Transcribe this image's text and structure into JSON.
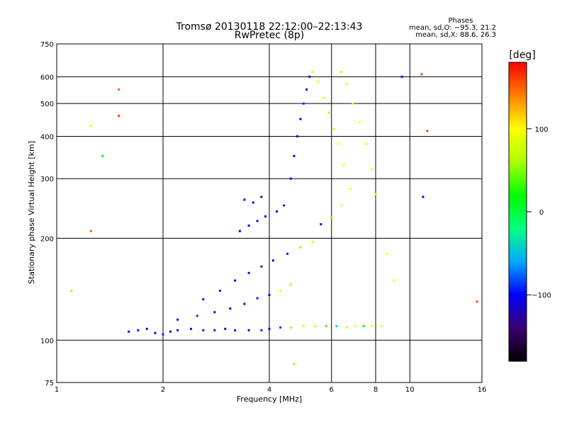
{
  "chart_data": {
    "type": "scatter",
    "title": "Tromsø 20130118 22:12:00–22:13:43",
    "subtitle": "RwPretec (8p)",
    "xlabel": "Frequency [MHz]",
    "ylabel": "Stationary phase Virtual Height [km]",
    "x_scale": "log",
    "y_scale": "log",
    "xlim": [
      1,
      16
    ],
    "ylim": [
      75,
      750
    ],
    "x_ticks": [
      "1",
      "2",
      "4",
      "6",
      "8",
      "10",
      "16"
    ],
    "x_tick_values": [
      1,
      2,
      4,
      6,
      8,
      10,
      16
    ],
    "y_ticks": [
      "75",
      "100",
      "200",
      "300",
      "400",
      "500",
      "600",
      "750"
    ],
    "y_tick_values": [
      75,
      100,
      200,
      300,
      400,
      500,
      600,
      750
    ],
    "grid": true,
    "legend_title": "Phases",
    "legend_lines": [
      "mean, sd,O: −95.3, 21.2",
      "mean, sd,X:  88.6, 26.3"
    ],
    "colorbar": {
      "label": "[deg]",
      "ticks": [
        "100",
        "0",
        "−100"
      ],
      "tick_values": [
        100,
        0,
        -100
      ],
      "range": [
        -180,
        180
      ],
      "colors": [
        "#000000",
        "#3b0070",
        "#0000ff",
        "#00aaff",
        "#00ff80",
        "#00ff00",
        "#aaff00",
        "#ffff00",
        "#ff8000",
        "#ff0000"
      ]
    },
    "series": [
      {
        "values": [
          {
            "x": 1.6,
            "y": 106,
            "c": -100
          },
          {
            "x": 1.7,
            "y": 107,
            "c": -95
          },
          {
            "x": 1.8,
            "y": 108,
            "c": -110
          },
          {
            "x": 1.9,
            "y": 105,
            "c": -100
          },
          {
            "x": 2.0,
            "y": 104,
            "c": -90
          },
          {
            "x": 2.1,
            "y": 106,
            "c": -120
          },
          {
            "x": 2.2,
            "y": 107,
            "c": -100
          },
          {
            "x": 2.4,
            "y": 108,
            "c": -100
          },
          {
            "x": 2.6,
            "y": 107,
            "c": -95
          },
          {
            "x": 2.8,
            "y": 107,
            "c": -100
          },
          {
            "x": 3.0,
            "y": 108,
            "c": -105
          },
          {
            "x": 3.2,
            "y": 107,
            "c": -100
          },
          {
            "x": 3.5,
            "y": 107,
            "c": -100
          },
          {
            "x": 3.8,
            "y": 107,
            "c": -95
          },
          {
            "x": 4.0,
            "y": 108,
            "c": -100
          },
          {
            "x": 4.3,
            "y": 109,
            "c": -90
          },
          {
            "x": 4.6,
            "y": 109,
            "c": 60
          },
          {
            "x": 5.0,
            "y": 110,
            "c": 90
          },
          {
            "x": 5.4,
            "y": 110,
            "c": 110
          },
          {
            "x": 5.8,
            "y": 110,
            "c": 40
          },
          {
            "x": 6.2,
            "y": 110,
            "c": -40
          },
          {
            "x": 6.6,
            "y": 109,
            "c": 80
          },
          {
            "x": 7.0,
            "y": 110,
            "c": 90
          },
          {
            "x": 7.4,
            "y": 110,
            "c": 20
          },
          {
            "x": 7.8,
            "y": 110,
            "c": 100
          },
          {
            "x": 8.3,
            "y": 110,
            "c": 95
          },
          {
            "x": 2.2,
            "y": 115,
            "c": -100
          },
          {
            "x": 2.5,
            "y": 118,
            "c": -90
          },
          {
            "x": 2.8,
            "y": 121,
            "c": -110
          },
          {
            "x": 3.1,
            "y": 124,
            "c": -100
          },
          {
            "x": 3.4,
            "y": 128,
            "c": -100
          },
          {
            "x": 3.7,
            "y": 133,
            "c": -95
          },
          {
            "x": 4.0,
            "y": 136,
            "c": -100
          },
          {
            "x": 4.3,
            "y": 140,
            "c": 90
          },
          {
            "x": 4.6,
            "y": 146,
            "c": 60
          },
          {
            "x": 2.6,
            "y": 132,
            "c": -100
          },
          {
            "x": 2.9,
            "y": 140,
            "c": -100
          },
          {
            "x": 3.2,
            "y": 150,
            "c": -110
          },
          {
            "x": 3.5,
            "y": 158,
            "c": -100
          },
          {
            "x": 3.8,
            "y": 165,
            "c": -95
          },
          {
            "x": 4.1,
            "y": 172,
            "c": -100
          },
          {
            "x": 4.5,
            "y": 180,
            "c": -90
          },
          {
            "x": 4.9,
            "y": 188,
            "c": 50
          },
          {
            "x": 5.3,
            "y": 195,
            "c": 80
          },
          {
            "x": 3.3,
            "y": 210,
            "c": -100
          },
          {
            "x": 3.5,
            "y": 218,
            "c": -100
          },
          {
            "x": 3.7,
            "y": 225,
            "c": -110
          },
          {
            "x": 3.9,
            "y": 232,
            "c": -100
          },
          {
            "x": 4.2,
            "y": 240,
            "c": -100
          },
          {
            "x": 4.4,
            "y": 250,
            "c": -95
          },
          {
            "x": 3.4,
            "y": 260,
            "c": -100
          },
          {
            "x": 3.6,
            "y": 255,
            "c": -100
          },
          {
            "x": 3.8,
            "y": 265,
            "c": -110
          },
          {
            "x": 4.6,
            "y": 300,
            "c": -100
          },
          {
            "x": 4.7,
            "y": 350,
            "c": -100
          },
          {
            "x": 4.8,
            "y": 400,
            "c": -105
          },
          {
            "x": 4.9,
            "y": 450,
            "c": -100
          },
          {
            "x": 5.0,
            "y": 500,
            "c": -90
          },
          {
            "x": 5.1,
            "y": 550,
            "c": -100
          },
          {
            "x": 5.2,
            "y": 600,
            "c": -100
          },
          {
            "x": 5.3,
            "y": 620,
            "c": 80
          },
          {
            "x": 5.5,
            "y": 580,
            "c": 100
          },
          {
            "x": 5.7,
            "y": 520,
            "c": 90
          },
          {
            "x": 5.9,
            "y": 470,
            "c": 60
          },
          {
            "x": 6.1,
            "y": 420,
            "c": 80
          },
          {
            "x": 6.3,
            "y": 380,
            "c": 100
          },
          {
            "x": 6.5,
            "y": 330,
            "c": 90
          },
          {
            "x": 6.8,
            "y": 280,
            "c": 100
          },
          {
            "x": 6.4,
            "y": 250,
            "c": 90
          },
          {
            "x": 6.0,
            "y": 230,
            "c": 60
          },
          {
            "x": 5.6,
            "y": 220,
            "c": -100
          },
          {
            "x": 6.4,
            "y": 620,
            "c": 110
          },
          {
            "x": 6.6,
            "y": 570,
            "c": 95
          },
          {
            "x": 6.9,
            "y": 500,
            "c": 90
          },
          {
            "x": 7.2,
            "y": 440,
            "c": 100
          },
          {
            "x": 7.5,
            "y": 380,
            "c": 90
          },
          {
            "x": 7.8,
            "y": 320,
            "c": 100
          },
          {
            "x": 8.0,
            "y": 270,
            "c": 90
          },
          {
            "x": 8.6,
            "y": 180,
            "c": 100
          },
          {
            "x": 9.0,
            "y": 150,
            "c": 90
          },
          {
            "x": 1.1,
            "y": 140,
            "c": 60
          },
          {
            "x": 1.25,
            "y": 210,
            "c": 150
          },
          {
            "x": 1.25,
            "y": 430,
            "c": 80
          },
          {
            "x": 1.5,
            "y": 550,
            "c": 150
          },
          {
            "x": 1.5,
            "y": 460,
            "c": 160
          },
          {
            "x": 1.35,
            "y": 350,
            "c": 20
          },
          {
            "x": 9.5,
            "y": 600,
            "c": -100
          },
          {
            "x": 10.8,
            "y": 610,
            "c": 160
          },
          {
            "x": 11.2,
            "y": 415,
            "c": 160
          },
          {
            "x": 10.9,
            "y": 265,
            "c": -100
          },
          {
            "x": 15.5,
            "y": 130,
            "c": 160
          },
          {
            "x": 4.7,
            "y": 85,
            "c": 120
          }
        ]
      }
    ]
  }
}
